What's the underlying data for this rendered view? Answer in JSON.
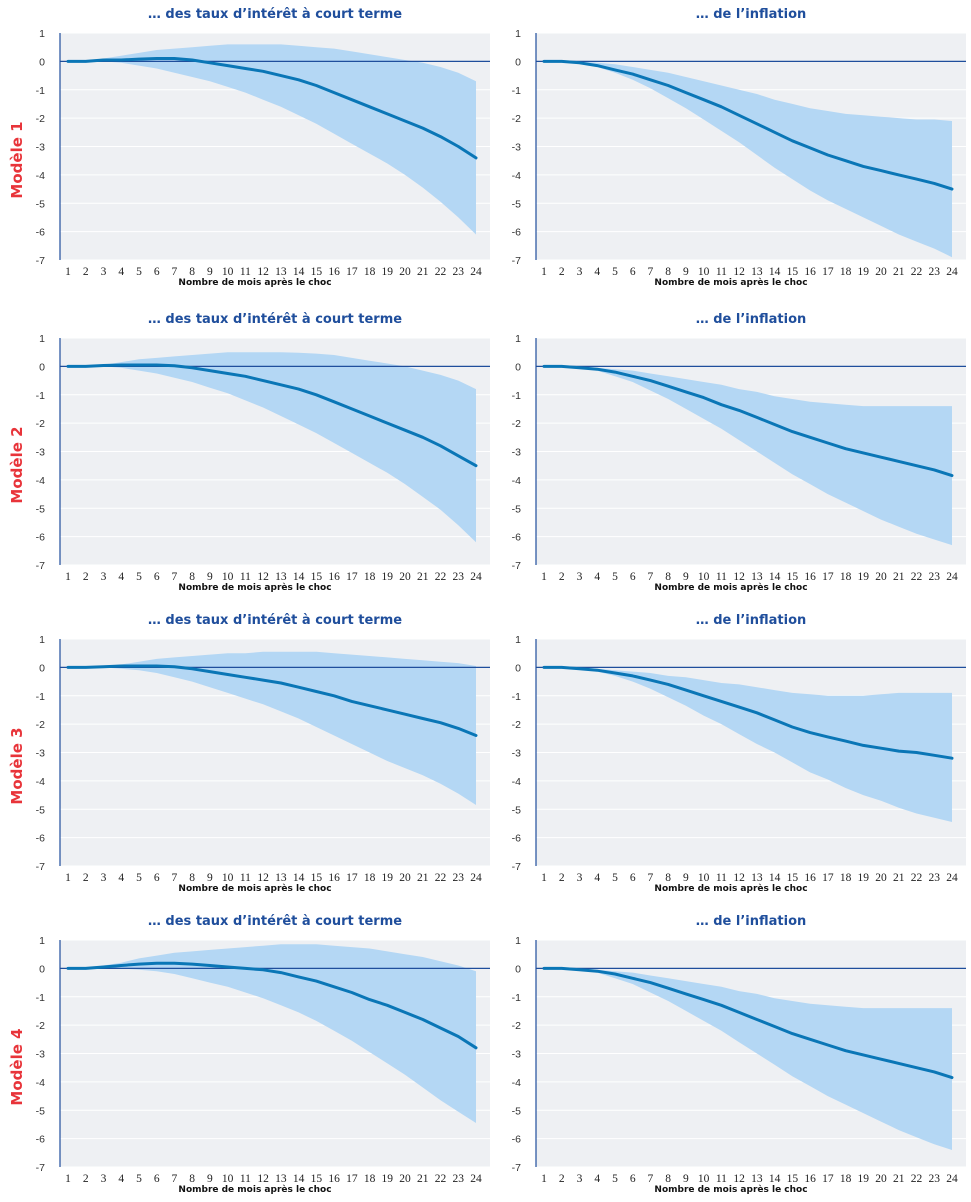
{
  "colors": {
    "plot_background": "#eef0f3",
    "band": "#b4d7f4",
    "line": "#0a76b6",
    "zero_line": "#1f4e9c",
    "axis": "#1f4e9c",
    "panel_title": "#1f4e9c",
    "model_label": "#e8343a"
  },
  "models": [
    "Modèle 1",
    "Modèle 2",
    "Modèle 3",
    "Modèle 4"
  ],
  "chart_data": [
    {
      "type": "area",
      "model": "Modèle 1",
      "title": "… des taux d’intérêt à court terme",
      "xlabel": "Nombre de mois après le choc",
      "x": [
        1,
        2,
        3,
        4,
        5,
        6,
        7,
        8,
        9,
        10,
        11,
        12,
        13,
        14,
        15,
        16,
        17,
        18,
        19,
        20,
        21,
        22,
        23,
        24
      ],
      "ylim": [
        -7,
        1
      ],
      "yticks": [
        1,
        0,
        -1,
        -2,
        -3,
        -4,
        -5,
        -6,
        -7
      ],
      "band_upper": [
        0,
        0,
        0.1,
        0.2,
        0.3,
        0.4,
        0.45,
        0.5,
        0.55,
        0.6,
        0.6,
        0.6,
        0.6,
        0.55,
        0.5,
        0.45,
        0.35,
        0.25,
        0.15,
        0.05,
        -0.05,
        -0.2,
        -0.4,
        -0.7
      ],
      "band_lower": [
        0,
        0,
        0,
        -0.05,
        -0.15,
        -0.25,
        -0.4,
        -0.55,
        -0.7,
        -0.9,
        -1.1,
        -1.35,
        -1.6,
        -1.9,
        -2.2,
        -2.55,
        -2.9,
        -3.25,
        -3.6,
        -4.0,
        -4.45,
        -4.95,
        -5.5,
        -6.1
      ],
      "values": [
        0,
        0,
        0.05,
        0.05,
        0.08,
        0.1,
        0.1,
        0.05,
        -0.05,
        -0.15,
        -0.25,
        -0.35,
        -0.5,
        -0.65,
        -0.85,
        -1.1,
        -1.35,
        -1.6,
        -1.85,
        -2.1,
        -2.35,
        -2.65,
        -3.0,
        -3.4
      ]
    },
    {
      "type": "area",
      "model": "Modèle 1",
      "title": "… de l’inflation",
      "xlabel": "Nombre de mois après le choc",
      "x": [
        1,
        2,
        3,
        4,
        5,
        6,
        7,
        8,
        9,
        10,
        11,
        12,
        13,
        14,
        15,
        16,
        17,
        18,
        19,
        20,
        21,
        22,
        23,
        24
      ],
      "ylim": [
        -7,
        1
      ],
      "yticks": [
        1,
        0,
        -1,
        -2,
        -3,
        -4,
        -5,
        -6,
        -7
      ],
      "band_upper": [
        0,
        0,
        0,
        -0.05,
        -0.1,
        -0.2,
        -0.3,
        -0.4,
        -0.55,
        -0.7,
        -0.85,
        -1.0,
        -1.15,
        -1.35,
        -1.5,
        -1.65,
        -1.75,
        -1.85,
        -1.9,
        -1.95,
        -2.0,
        -2.05,
        -2.05,
        -2.1
      ],
      "band_lower": [
        0,
        0,
        -0.05,
        -0.2,
        -0.4,
        -0.65,
        -0.95,
        -1.3,
        -1.65,
        -2.05,
        -2.45,
        -2.85,
        -3.3,
        -3.75,
        -4.15,
        -4.55,
        -4.9,
        -5.2,
        -5.5,
        -5.8,
        -6.1,
        -6.35,
        -6.6,
        -6.9
      ],
      "values": [
        0,
        0,
        -0.05,
        -0.15,
        -0.3,
        -0.45,
        -0.65,
        -0.85,
        -1.1,
        -1.35,
        -1.6,
        -1.9,
        -2.2,
        -2.5,
        -2.8,
        -3.05,
        -3.3,
        -3.5,
        -3.7,
        -3.85,
        -4.0,
        -4.15,
        -4.3,
        -4.5
      ]
    },
    {
      "type": "area",
      "model": "Modèle 2",
      "title": "… des taux d’intérêt à court terme",
      "xlabel": "Nombre de mois après le choc",
      "x": [
        1,
        2,
        3,
        4,
        5,
        6,
        7,
        8,
        9,
        10,
        11,
        12,
        13,
        14,
        15,
        16,
        17,
        18,
        19,
        20,
        21,
        22,
        23,
        24
      ],
      "ylim": [
        -7,
        1
      ],
      "yticks": [
        1,
        0,
        -1,
        -2,
        -3,
        -4,
        -5,
        -6,
        -7
      ],
      "band_upper": [
        0,
        0,
        0.05,
        0.15,
        0.25,
        0.3,
        0.35,
        0.4,
        0.45,
        0.5,
        0.5,
        0.5,
        0.5,
        0.48,
        0.45,
        0.4,
        0.3,
        0.2,
        0.1,
        0,
        -0.15,
        -0.3,
        -0.5,
        -0.8
      ],
      "band_lower": [
        0,
        0,
        0,
        -0.05,
        -0.15,
        -0.25,
        -0.4,
        -0.55,
        -0.75,
        -0.95,
        -1.2,
        -1.45,
        -1.75,
        -2.05,
        -2.35,
        -2.7,
        -3.05,
        -3.4,
        -3.75,
        -4.15,
        -4.6,
        -5.05,
        -5.6,
        -6.2
      ],
      "values": [
        0,
        0,
        0.03,
        0.05,
        0.05,
        0.05,
        0.02,
        -0.05,
        -0.15,
        -0.25,
        -0.35,
        -0.5,
        -0.65,
        -0.8,
        -1.0,
        -1.25,
        -1.5,
        -1.75,
        -2.0,
        -2.25,
        -2.5,
        -2.8,
        -3.15,
        -3.5
      ]
    },
    {
      "type": "area",
      "model": "Modèle 2",
      "title": "… de l’inflation",
      "xlabel": "Nombre de mois après le choc",
      "x": [
        1,
        2,
        3,
        4,
        5,
        6,
        7,
        8,
        9,
        10,
        11,
        12,
        13,
        14,
        15,
        16,
        17,
        18,
        19,
        20,
        21,
        22,
        23,
        24
      ],
      "ylim": [
        -7,
        1
      ],
      "yticks": [
        1,
        0,
        -1,
        -2,
        -3,
        -4,
        -5,
        -6,
        -7
      ],
      "band_upper": [
        0,
        0,
        0,
        -0.05,
        -0.1,
        -0.15,
        -0.25,
        -0.35,
        -0.45,
        -0.55,
        -0.65,
        -0.8,
        -0.9,
        -1.05,
        -1.15,
        -1.25,
        -1.3,
        -1.35,
        -1.4,
        -1.4,
        -1.4,
        -1.4,
        -1.4,
        -1.4
      ],
      "band_lower": [
        0,
        0,
        -0.05,
        -0.15,
        -0.35,
        -0.55,
        -0.85,
        -1.15,
        -1.5,
        -1.85,
        -2.2,
        -2.6,
        -3.0,
        -3.4,
        -3.8,
        -4.15,
        -4.5,
        -4.8,
        -5.1,
        -5.4,
        -5.65,
        -5.9,
        -6.1,
        -6.3
      ],
      "values": [
        0,
        0,
        -0.05,
        -0.1,
        -0.2,
        -0.35,
        -0.5,
        -0.7,
        -0.9,
        -1.1,
        -1.35,
        -1.55,
        -1.8,
        -2.05,
        -2.3,
        -2.5,
        -2.7,
        -2.9,
        -3.05,
        -3.2,
        -3.35,
        -3.5,
        -3.65,
        -3.85
      ]
    },
    {
      "type": "area",
      "model": "Modèle 3",
      "title": "… des taux d’intérêt à court terme",
      "xlabel": "Nombre de mois après le choc",
      "x": [
        1,
        2,
        3,
        4,
        5,
        6,
        7,
        8,
        9,
        10,
        11,
        12,
        13,
        14,
        15,
        16,
        17,
        18,
        19,
        20,
        21,
        22,
        23,
        24
      ],
      "ylim": [
        -7,
        1
      ],
      "yticks": [
        1,
        0,
        -1,
        -2,
        -3,
        -4,
        -5,
        -6,
        -7
      ],
      "band_upper": [
        0,
        0,
        0.05,
        0.1,
        0.2,
        0.3,
        0.35,
        0.4,
        0.45,
        0.5,
        0.5,
        0.55,
        0.55,
        0.55,
        0.55,
        0.5,
        0.45,
        0.4,
        0.35,
        0.3,
        0.25,
        0.2,
        0.15,
        0.05
      ],
      "band_lower": [
        0,
        0,
        0,
        -0.05,
        -0.1,
        -0.2,
        -0.35,
        -0.5,
        -0.7,
        -0.9,
        -1.1,
        -1.3,
        -1.55,
        -1.8,
        -2.1,
        -2.4,
        -2.7,
        -3.0,
        -3.3,
        -3.55,
        -3.8,
        -4.1,
        -4.45,
        -4.85
      ],
      "values": [
        0,
        0,
        0.02,
        0.05,
        0.05,
        0.05,
        0.02,
        -0.05,
        -0.15,
        -0.25,
        -0.35,
        -0.45,
        -0.55,
        -0.7,
        -0.85,
        -1.0,
        -1.2,
        -1.35,
        -1.5,
        -1.65,
        -1.8,
        -1.95,
        -2.15,
        -2.4
      ]
    },
    {
      "type": "area",
      "model": "Modèle 3",
      "title": "… de l’inflation",
      "xlabel": "Nombre de mois après le choc",
      "x": [
        1,
        2,
        3,
        4,
        5,
        6,
        7,
        8,
        9,
        10,
        11,
        12,
        13,
        14,
        15,
        16,
        17,
        18,
        19,
        20,
        21,
        22,
        23,
        24
      ],
      "ylim": [
        -7,
        1
      ],
      "yticks": [
        1,
        0,
        -1,
        -2,
        -3,
        -4,
        -5,
        -6,
        -7
      ],
      "band_upper": [
        0,
        0,
        0,
        -0.05,
        -0.1,
        -0.15,
        -0.2,
        -0.3,
        -0.35,
        -0.45,
        -0.55,
        -0.6,
        -0.7,
        -0.8,
        -0.9,
        -0.95,
        -1.0,
        -1.0,
        -1.0,
        -0.95,
        -0.9,
        -0.9,
        -0.9,
        -0.9
      ],
      "band_lower": [
        0,
        0,
        -0.05,
        -0.15,
        -0.3,
        -0.5,
        -0.75,
        -1.05,
        -1.35,
        -1.7,
        -2.0,
        -2.35,
        -2.7,
        -3.0,
        -3.35,
        -3.7,
        -3.95,
        -4.25,
        -4.5,
        -4.7,
        -4.95,
        -5.15,
        -5.3,
        -5.45
      ],
      "values": [
        0,
        0,
        -0.05,
        -0.1,
        -0.2,
        -0.3,
        -0.45,
        -0.6,
        -0.8,
        -1.0,
        -1.2,
        -1.4,
        -1.6,
        -1.85,
        -2.1,
        -2.3,
        -2.45,
        -2.6,
        -2.75,
        -2.85,
        -2.95,
        -3.0,
        -3.1,
        -3.2
      ]
    },
    {
      "type": "area",
      "model": "Modèle 4",
      "title": "… des taux d’intérêt à court terme",
      "xlabel": "Nombre de mois après le choc",
      "x": [
        1,
        2,
        3,
        4,
        5,
        6,
        7,
        8,
        9,
        10,
        11,
        12,
        13,
        14,
        15,
        16,
        17,
        18,
        19,
        20,
        21,
        22,
        23,
        24
      ],
      "ylim": [
        -7,
        1
      ],
      "yticks": [
        1,
        0,
        -1,
        -2,
        -3,
        -4,
        -5,
        -6,
        -7
      ],
      "band_upper": [
        0,
        0,
        0.1,
        0.2,
        0.35,
        0.45,
        0.55,
        0.6,
        0.65,
        0.7,
        0.75,
        0.8,
        0.85,
        0.85,
        0.85,
        0.8,
        0.75,
        0.7,
        0.6,
        0.5,
        0.4,
        0.25,
        0.1,
        -0.1
      ],
      "band_lower": [
        0,
        0,
        0,
        0,
        -0.05,
        -0.1,
        -0.2,
        -0.35,
        -0.5,
        -0.65,
        -0.85,
        -1.05,
        -1.3,
        -1.55,
        -1.85,
        -2.2,
        -2.55,
        -2.95,
        -3.35,
        -3.75,
        -4.2,
        -4.65,
        -5.05,
        -5.45
      ],
      "values": [
        0,
        0,
        0.05,
        0.1,
        0.15,
        0.18,
        0.18,
        0.15,
        0.1,
        0.05,
        0,
        -0.05,
        -0.15,
        -0.3,
        -0.45,
        -0.65,
        -0.85,
        -1.1,
        -1.3,
        -1.55,
        -1.8,
        -2.1,
        -2.4,
        -2.8
      ]
    },
    {
      "type": "area",
      "model": "Modèle 4",
      "title": "… de l’inflation",
      "xlabel": "Nombre de mois après le choc",
      "x": [
        1,
        2,
        3,
        4,
        5,
        6,
        7,
        8,
        9,
        10,
        11,
        12,
        13,
        14,
        15,
        16,
        17,
        18,
        19,
        20,
        21,
        22,
        23,
        24
      ],
      "ylim": [
        -7,
        1
      ],
      "yticks": [
        1,
        0,
        -1,
        -2,
        -3,
        -4,
        -5,
        -6,
        -7
      ],
      "band_upper": [
        0,
        0,
        0,
        -0.05,
        -0.1,
        -0.15,
        -0.25,
        -0.35,
        -0.45,
        -0.55,
        -0.65,
        -0.8,
        -0.9,
        -1.05,
        -1.15,
        -1.25,
        -1.3,
        -1.35,
        -1.4,
        -1.4,
        -1.4,
        -1.4,
        -1.4,
        -1.4
      ],
      "band_lower": [
        0,
        0,
        -0.05,
        -0.15,
        -0.35,
        -0.55,
        -0.85,
        -1.15,
        -1.5,
        -1.85,
        -2.2,
        -2.6,
        -3.0,
        -3.4,
        -3.8,
        -4.15,
        -4.5,
        -4.8,
        -5.1,
        -5.4,
        -5.7,
        -5.95,
        -6.2,
        -6.4
      ],
      "values": [
        0,
        0,
        -0.05,
        -0.1,
        -0.2,
        -0.35,
        -0.5,
        -0.7,
        -0.9,
        -1.1,
        -1.3,
        -1.55,
        -1.8,
        -2.05,
        -2.3,
        -2.5,
        -2.7,
        -2.9,
        -3.05,
        -3.2,
        -3.35,
        -3.5,
        -3.65,
        -3.85
      ]
    }
  ]
}
